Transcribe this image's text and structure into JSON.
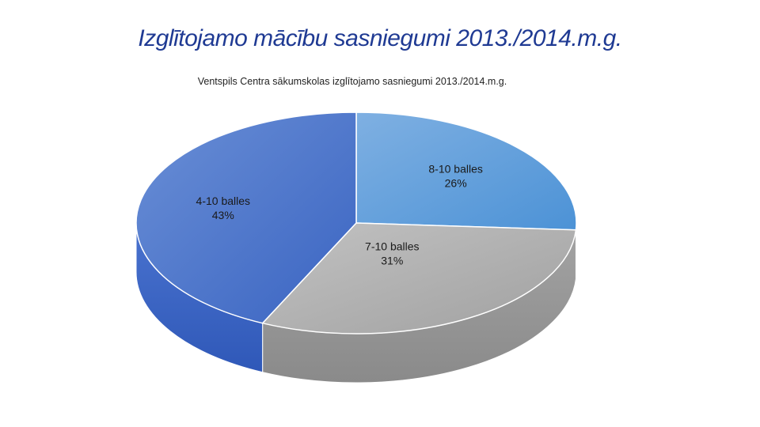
{
  "slide": {
    "title": "Izglītojamo mācību sasniegumi 2013./2014.m.g."
  },
  "chart_data": {
    "type": "pie",
    "title": "Ventspils Centra sākumskolas izglītojamo sasniegumi 2013./2014.m.g.",
    "three_d": true,
    "categories": [
      "8-10 balles",
      "7-10 balles",
      "4-10 balles"
    ],
    "values": [
      26,
      31,
      43
    ],
    "value_labels": [
      "26%",
      "31%",
      "43%"
    ],
    "colors": [
      "#5b9bd5",
      "#a5a5a5",
      "#4472c4"
    ],
    "legend": "none"
  }
}
